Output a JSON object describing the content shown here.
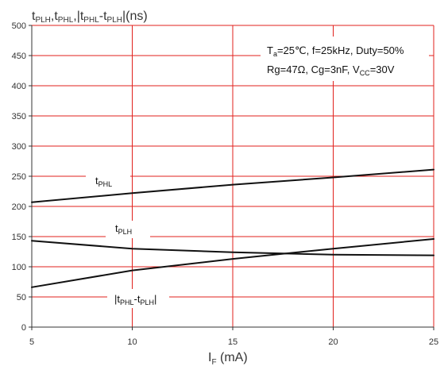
{
  "chart_data": {
    "type": "line",
    "ylabel": "tPLH,tPHL,|tPHL-tPLH|(ns)",
    "ylabel_parts": [
      "t",
      "PLH",
      ",t",
      "PHL",
      ",|t",
      "PHL",
      "-t",
      "PLH",
      "|(ns)"
    ],
    "xlabel": "IF (mA)",
    "xlabel_parts": [
      "I",
      "F",
      " (mA)"
    ],
    "xlim": [
      5,
      25
    ],
    "ylim": [
      0,
      500
    ],
    "x_ticks": [
      5,
      10,
      15,
      20,
      25
    ],
    "y_ticks": [
      0,
      50,
      100,
      150,
      200,
      250,
      300,
      350,
      400,
      450,
      500
    ],
    "grid": true,
    "grid_color": "#e0201c",
    "line_color": "#111111",
    "annotation": {
      "line1_parts": [
        "T",
        "a",
        "=25℃, f=25kHz, Duty=50%"
      ],
      "line2_parts": [
        "Rg=47Ω, Cg=3nF, V",
        "CC",
        "=30V"
      ]
    },
    "series": [
      {
        "name": "tPHL",
        "name_parts": [
          "t",
          "PHL"
        ],
        "x": [
          5,
          10,
          15,
          20,
          25
        ],
        "values": [
          207,
          222,
          236,
          248,
          261
        ]
      },
      {
        "name": "tPLH",
        "name_parts": [
          "t",
          "PLH"
        ],
        "x": [
          5,
          10,
          15,
          20,
          25
        ],
        "values": [
          143,
          130,
          124,
          120,
          119
        ]
      },
      {
        "name": "|tPHL-tPLH|",
        "name_parts": [
          "|t",
          "PHL",
          "-t",
          "PLH",
          "|"
        ],
        "x": [
          5,
          10,
          15,
          20,
          25
        ],
        "values": [
          66,
          94,
          113,
          130,
          146
        ]
      }
    ]
  }
}
